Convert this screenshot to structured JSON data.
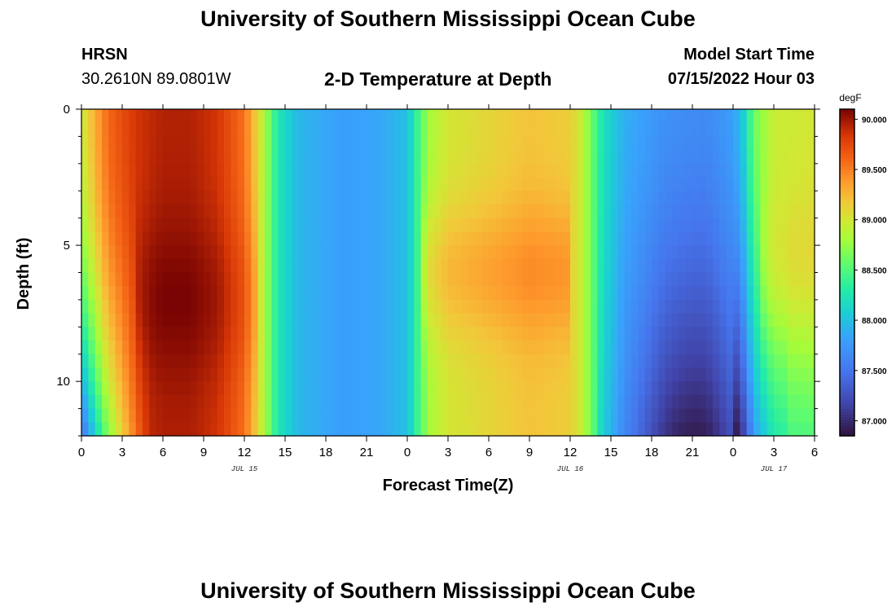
{
  "header": {
    "title": "University of Southern Mississippi Ocean Cube",
    "station": "HRSN",
    "coords": "30.2610N  89.0801W",
    "model_label": "Model Start Time",
    "model_time": "07/15/2022 Hour 03",
    "footer_title": "University of Southern Mississippi Ocean Cube"
  },
  "chart_data": {
    "type": "heatmap",
    "title": "2-D Temperature at Depth",
    "xlabel": "Forecast Time(Z)",
    "ylabel": "Depth (ft)",
    "x_range_hours": [
      0,
      54
    ],
    "y_range_ft": [
      0,
      12
    ],
    "y_reversed": true,
    "x_ticks": [
      "0",
      "3",
      "6",
      "9",
      "12",
      "15",
      "18",
      "21",
      "0",
      "3",
      "6",
      "9",
      "12",
      "15",
      "18",
      "21",
      "0",
      "3",
      "6"
    ],
    "y_ticks": [
      0,
      5,
      10
    ],
    "date_labels": [
      {
        "label": "JUL 15",
        "hour": 12
      },
      {
        "label": "JUL 16",
        "hour": 36
      },
      {
        "label": "JUL 17",
        "hour": 51
      }
    ],
    "colorbar": {
      "unit": "degF",
      "min": 86.85,
      "max": 90.1,
      "ticks": [
        "90.000",
        "89.500",
        "89.000",
        "88.500",
        "88.000",
        "87.500",
        "87.000"
      ],
      "tick_values": [
        90.0,
        89.5,
        89.0,
        88.5,
        88.0,
        87.5,
        87.0
      ]
    },
    "grid": false
  }
}
